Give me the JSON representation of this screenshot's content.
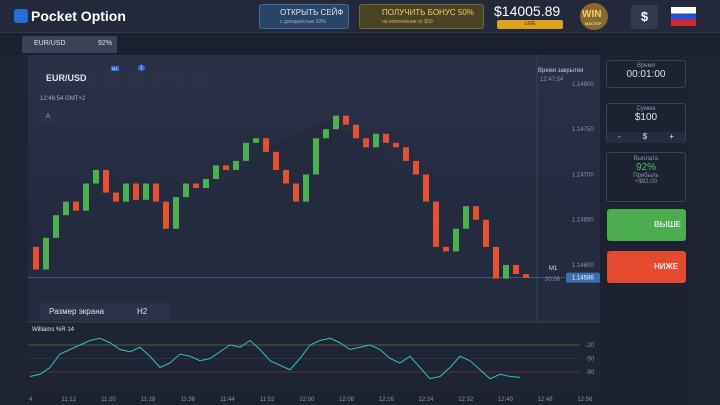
{
  "header": {
    "logo": "Pocket Option",
    "safe_title": "ОТКРЫТЬ СЕЙФ",
    "safe_sub": "с доходностью 10%",
    "bonus_title": "ПОЛУЧИТЬ БОНУС 50%",
    "bonus_sub": "на пополнение от $50",
    "balance": "$14005.89",
    "balance_mode": "LIVE",
    "badge": "WIN",
    "badge_sub": "МАСТЕР",
    "deposit": "$"
  },
  "tab": {
    "asset": "EUR/USD",
    "payout": "92%"
  },
  "toolbar": {
    "asset": "EUR/USD",
    "timeframe": "M1",
    "badge": "1",
    "clock": "12:46:54 GMT+2",
    "drawing": "A"
  },
  "chart": {
    "close_label": "Время закрытия",
    "close_time": "12:47:54",
    "timeframe": "M1",
    "current_price": "1.14586",
    "countdown": "00:06",
    "price_ticks": [
      1.148,
      1.1475,
      1.147,
      1.1465,
      1.146
    ],
    "price_tick_labels": [
      "1.14800",
      "1.14750",
      "1.14700",
      "1.14650",
      "1.14600"
    ],
    "ylim": [
      1.14537,
      1.14832
    ],
    "current_value": 1.14586,
    "first_open": 1.1462,
    "closes": [
      1.14595,
      1.1463,
      1.14655,
      1.1467,
      1.1466,
      1.1469,
      1.14705,
      1.1468,
      1.1467,
      1.1469,
      1.14672,
      1.1469,
      1.1467,
      1.1464,
      1.14675,
      1.1469,
      1.14685,
      1.14695,
      1.1471,
      1.14705,
      1.14715,
      1.14735,
      1.1474,
      1.14725,
      1.14705,
      1.1469,
      1.1467,
      1.147,
      1.1474,
      1.1475,
      1.14765,
      1.14755,
      1.1474,
      1.1473,
      1.14745,
      1.14735,
      1.1473,
      1.14715,
      1.147,
      1.1467,
      1.1462,
      1.14615,
      1.1464,
      1.14665,
      1.1465,
      1.1462,
      1.14585,
      1.146,
      1.1459,
      1.14586
    ],
    "screen_size": "Размер экрана",
    "screen_value": "H2",
    "time_labels": [
      "4",
      "11:12",
      "11:20",
      "11:28",
      "11:36",
      "11:44",
      "11:52",
      "12:00",
      "12:08",
      "12:16",
      "12:24",
      "12:32",
      "12:40",
      "12:48",
      "12:56"
    ]
  },
  "indicator": {
    "name": "Williams %R 14",
    "ylim": [
      -100,
      0
    ],
    "yticks": [
      -20,
      -50,
      -80
    ],
    "values": [
      -90,
      -85,
      -70,
      -40,
      -30,
      -20,
      -10,
      -5,
      -15,
      -30,
      -35,
      -25,
      -45,
      -70,
      -60,
      -40,
      -45,
      -55,
      -50,
      -35,
      -20,
      -25,
      -10,
      -30,
      -55,
      -65,
      -75,
      -50,
      -20,
      -10,
      -5,
      -15,
      -30,
      -25,
      -20,
      -30,
      -50,
      -60,
      -45,
      -70,
      -95,
      -90,
      -70,
      -45,
      -55,
      -75,
      -95,
      -85,
      -90,
      -92
    ]
  },
  "panel": {
    "time_label": "Время",
    "time": "00:01:00",
    "amount_label": "Сумма",
    "amount": "$100",
    "minus": "-",
    "currency": "$",
    "plus": "+",
    "payout_label": "Выплата",
    "payout": "92%",
    "profit_label": "Прибыль",
    "profit": "+$92.00",
    "up": "ВЫШЕ",
    "down": "НИЖЕ"
  }
}
